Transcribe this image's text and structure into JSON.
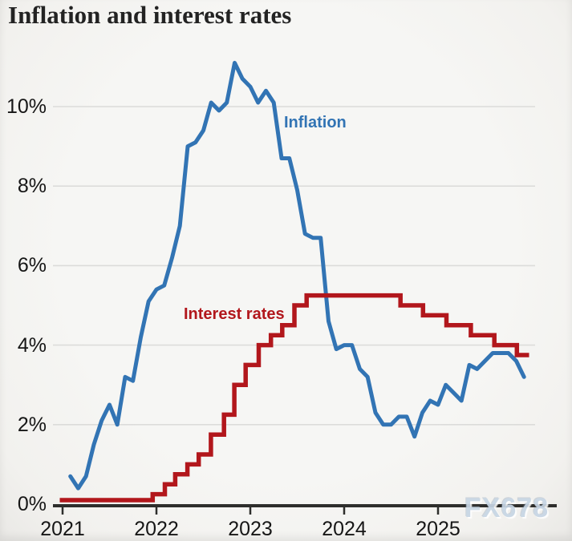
{
  "title": "Inflation and interest rates",
  "watermark": "FX678",
  "colors": {
    "inflation_blue": "#3274b4",
    "rates_red": "#b2171c",
    "grid": "#dcdcda",
    "axis": "#2e2e2c",
    "tick_text": "#161616",
    "title_text": "#232323",
    "background": "#f5f4f2",
    "watermark_fill": "#c7d6e5"
  },
  "chart_data": {
    "type": "line",
    "title": "Inflation and interest rates",
    "xlabel": "",
    "ylabel": "",
    "grid": "horizontal",
    "legend_position": "inline-labels-on-plot",
    "xlim": [
      2021.0,
      2026.25
    ],
    "ylim": [
      0,
      11.5
    ],
    "y_ticks": [
      {
        "v": 0,
        "label": "0%"
      },
      {
        "v": 2,
        "label": "2%"
      },
      {
        "v": 4,
        "label": "4%"
      },
      {
        "v": 6,
        "label": "6%"
      },
      {
        "v": 8,
        "label": "8%"
      },
      {
        "v": 10,
        "label": "10%"
      }
    ],
    "x_ticks": [
      {
        "v": 2021,
        "label": "2021"
      },
      {
        "v": 2022,
        "label": "2022"
      },
      {
        "v": 2023,
        "label": "2023"
      },
      {
        "v": 2024,
        "label": "2024"
      },
      {
        "v": 2025,
        "label": "2025"
      }
    ],
    "series": [
      {
        "name": "Inflation",
        "label": "Inflation",
        "type": "line",
        "unit": "%",
        "color": "#3274b4",
        "x_start": 2021.083,
        "x_step": 0.083333,
        "start_month": "2021-01",
        "values": [
          0.7,
          0.4,
          0.7,
          1.5,
          2.1,
          2.5,
          2.0,
          3.2,
          3.1,
          4.2,
          5.1,
          5.4,
          5.5,
          6.2,
          7.0,
          9.0,
          9.1,
          9.4,
          10.1,
          9.9,
          10.1,
          11.1,
          10.7,
          10.5,
          10.1,
          10.4,
          10.1,
          8.7,
          8.7,
          7.9,
          6.8,
          6.7,
          6.7,
          4.6,
          3.9,
          4.0,
          4.0,
          3.4,
          3.2,
          2.3,
          2.0,
          2.0,
          2.2,
          2.2,
          1.7,
          2.3,
          2.6,
          2.5,
          3.0,
          2.8,
          2.6,
          3.5,
          3.4,
          3.6,
          3.8,
          3.8,
          3.8,
          3.6,
          3.2
        ]
      },
      {
        "name": "Interest rates",
        "label": "Interest rates",
        "type": "step",
        "unit": "%",
        "color": "#b2171c",
        "steps": [
          [
            2020.97,
            0.1
          ],
          [
            2021.96,
            0.25
          ],
          [
            2022.09,
            0.5
          ],
          [
            2022.2,
            0.75
          ],
          [
            2022.33,
            1.0
          ],
          [
            2022.45,
            1.25
          ],
          [
            2022.58,
            1.75
          ],
          [
            2022.72,
            2.25
          ],
          [
            2022.83,
            3.0
          ],
          [
            2022.95,
            3.5
          ],
          [
            2023.09,
            4.0
          ],
          [
            2023.22,
            4.25
          ],
          [
            2023.34,
            4.5
          ],
          [
            2023.47,
            5.0
          ],
          [
            2023.6,
            5.25
          ],
          [
            2024.6,
            5.0
          ],
          [
            2024.84,
            4.75
          ],
          [
            2025.09,
            4.5
          ],
          [
            2025.35,
            4.25
          ],
          [
            2025.6,
            4.0
          ],
          [
            2025.84,
            3.75
          ]
        ],
        "x_end": 2025.97
      }
    ]
  }
}
